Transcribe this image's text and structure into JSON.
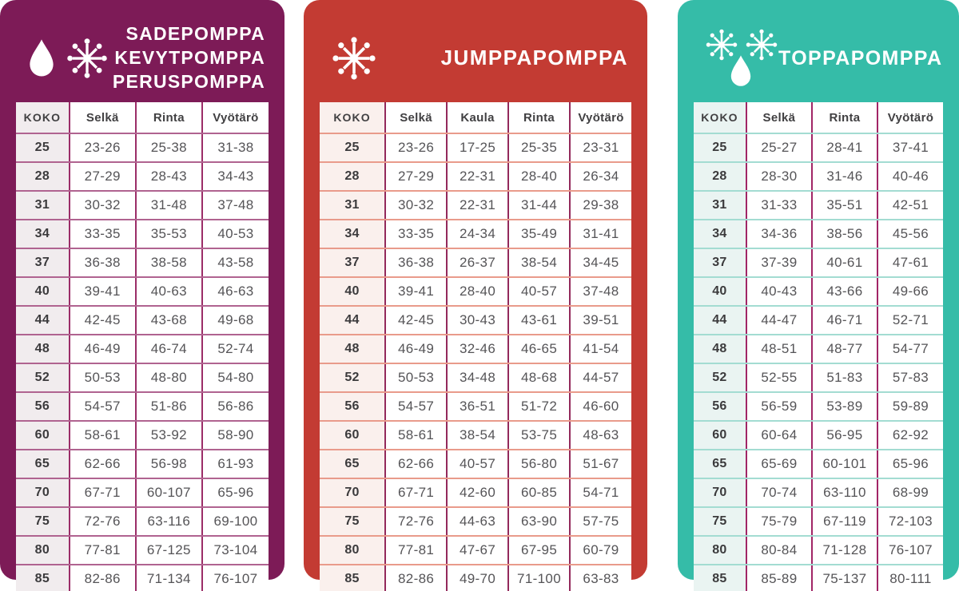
{
  "page": {
    "background": "#ffffff"
  },
  "panels": [
    {
      "name": "sadepomppa-kevytpomppa-peruspomppa",
      "color": "#7D1B57",
      "title_lines": [
        "SADEPOMPPA",
        "KEVYTPOMPPA",
        "PERUSPOMPPA"
      ],
      "icons": [
        "water-drop",
        "snowflake"
      ],
      "table_colors": {
        "vertical_border": "#9B2D68",
        "row_separator": "#B06390",
        "size_col_bg": "#F1ECEE"
      }
    },
    {
      "name": "jumppapomppa",
      "color": "#C33B33",
      "title_lines": [
        "JUMPPAPOMPPA"
      ],
      "icons": [
        "snowflake"
      ],
      "table_colors": {
        "vertical_border": "#93295B",
        "row_separator": "#E99B8B",
        "size_col_bg": "#FAF0ED"
      }
    },
    {
      "name": "toppapomppa",
      "color": "#35BCA8",
      "title_lines": [
        "TOPPAPOMPPA"
      ],
      "icons": [
        "snowflake",
        "snowflake",
        "water-drop"
      ],
      "table_colors": {
        "vertical_border": "#A12566",
        "row_separator": "#A3DCD2",
        "size_col_bg": "#EAF4F2"
      }
    }
  ],
  "chart_data": [
    {
      "type": "table",
      "title": "SADEPOMPPA KEVYTPOMPPA PERUSPOMPPA",
      "columns": [
        "KOKO",
        "Selkä",
        "Rinta",
        "Vyötärö"
      ],
      "rows": [
        [
          "25",
          "23-26",
          "25-38",
          "31-38"
        ],
        [
          "28",
          "27-29",
          "28-43",
          "34-43"
        ],
        [
          "31",
          "30-32",
          "31-48",
          "37-48"
        ],
        [
          "34",
          "33-35",
          "35-53",
          "40-53"
        ],
        [
          "37",
          "36-38",
          "38-58",
          "43-58"
        ],
        [
          "40",
          "39-41",
          "40-63",
          "46-63"
        ],
        [
          "44",
          "42-45",
          "43-68",
          "49-68"
        ],
        [
          "48",
          "46-49",
          "46-74",
          "52-74"
        ],
        [
          "52",
          "50-53",
          "48-80",
          "54-80"
        ],
        [
          "56",
          "54-57",
          "51-86",
          "56-86"
        ],
        [
          "60",
          "58-61",
          "53-92",
          "58-90"
        ],
        [
          "65",
          "62-66",
          "56-98",
          "61-93"
        ],
        [
          "70",
          "67-71",
          "60-107",
          "65-96"
        ],
        [
          "75",
          "72-76",
          "63-116",
          "69-100"
        ],
        [
          "80",
          "77-81",
          "67-125",
          "73-104"
        ],
        [
          "85",
          "82-86",
          "71-134",
          "76-107"
        ]
      ]
    },
    {
      "type": "table",
      "title": "JUMPPAPOMPPA",
      "columns": [
        "KOKO",
        "Selkä",
        "Kaula",
        "Rinta",
        "Vyötärö"
      ],
      "rows": [
        [
          "25",
          "23-26",
          "17-25",
          "25-35",
          "23-31"
        ],
        [
          "28",
          "27-29",
          "22-31",
          "28-40",
          "26-34"
        ],
        [
          "31",
          "30-32",
          "22-31",
          "31-44",
          "29-38"
        ],
        [
          "34",
          "33-35",
          "24-34",
          "35-49",
          "31-41"
        ],
        [
          "37",
          "36-38",
          "26-37",
          "38-54",
          "34-45"
        ],
        [
          "40",
          "39-41",
          "28-40",
          "40-57",
          "37-48"
        ],
        [
          "44",
          "42-45",
          "30-43",
          "43-61",
          "39-51"
        ],
        [
          "48",
          "46-49",
          "32-46",
          "46-65",
          "41-54"
        ],
        [
          "52",
          "50-53",
          "34-48",
          "48-68",
          "44-57"
        ],
        [
          "56",
          "54-57",
          "36-51",
          "51-72",
          "46-60"
        ],
        [
          "60",
          "58-61",
          "38-54",
          "53-75",
          "48-63"
        ],
        [
          "65",
          "62-66",
          "40-57",
          "56-80",
          "51-67"
        ],
        [
          "70",
          "67-71",
          "42-60",
          "60-85",
          "54-71"
        ],
        [
          "75",
          "72-76",
          "44-63",
          "63-90",
          "57-75"
        ],
        [
          "80",
          "77-81",
          "47-67",
          "67-95",
          "60-79"
        ],
        [
          "85",
          "82-86",
          "49-70",
          "71-100",
          "63-83"
        ]
      ]
    },
    {
      "type": "table",
      "title": "TOPPAPOMPPA",
      "columns": [
        "KOKO",
        "Selkä",
        "Rinta",
        "Vyötärö"
      ],
      "rows": [
        [
          "25",
          "25-27",
          "28-41",
          "37-41"
        ],
        [
          "28",
          "28-30",
          "31-46",
          "40-46"
        ],
        [
          "31",
          "31-33",
          "35-51",
          "42-51"
        ],
        [
          "34",
          "34-36",
          "38-56",
          "45-56"
        ],
        [
          "37",
          "37-39",
          "40-61",
          "47-61"
        ],
        [
          "40",
          "40-43",
          "43-66",
          "49-66"
        ],
        [
          "44",
          "44-47",
          "46-71",
          "52-71"
        ],
        [
          "48",
          "48-51",
          "48-77",
          "54-77"
        ],
        [
          "52",
          "52-55",
          "51-83",
          "57-83"
        ],
        [
          "56",
          "56-59",
          "53-89",
          "59-89"
        ],
        [
          "60",
          "60-64",
          "56-95",
          "62-92"
        ],
        [
          "65",
          "65-69",
          "60-101",
          "65-96"
        ],
        [
          "70",
          "70-74",
          "63-110",
          "68-99"
        ],
        [
          "75",
          "75-79",
          "67-119",
          "72-103"
        ],
        [
          "80",
          "80-84",
          "71-128",
          "76-107"
        ],
        [
          "85",
          "85-89",
          "75-137",
          "80-111"
        ]
      ]
    }
  ]
}
